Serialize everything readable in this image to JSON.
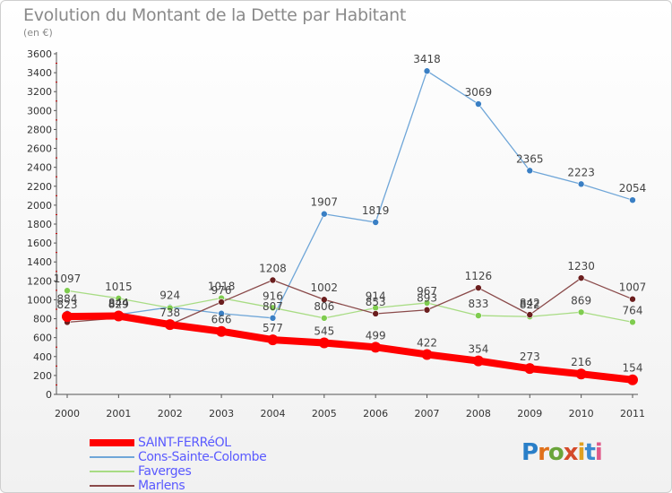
{
  "chart_data": {
    "type": "line",
    "title": "Evolution du Montant de la Dette par Habitant",
    "unit_label": "(en €)",
    "x": [
      "2000",
      "2001",
      "2002",
      "2003",
      "2004",
      "2005",
      "2006",
      "2007",
      "2008",
      "2009",
      "2010",
      "2011"
    ],
    "yticks": [
      0,
      200,
      400,
      600,
      800,
      1000,
      1200,
      1400,
      1600,
      1800,
      2000,
      2200,
      2400,
      2600,
      2800,
      3000,
      3200,
      3400,
      3600
    ],
    "ylim": [
      0,
      3600
    ],
    "grid": false,
    "legend_position": "bottom-left",
    "series": [
      {
        "name": "SAINT-FERRéOL",
        "color": "#ff0000",
        "marker": "#ff0000",
        "width": 8,
        "radius": 6,
        "values": [
          823,
          829,
          738,
          666,
          577,
          545,
          499,
          422,
          354,
          273,
          216,
          154
        ],
        "labels": [
          "823",
          "829",
          "738",
          "666",
          "577",
          "545",
          "499",
          "422",
          "354",
          "273",
          "216",
          "154"
        ]
      },
      {
        "name": "Cons-Sainte-Colombe",
        "color": "#6fa6d8",
        "marker": "#3a7fc4",
        "width": 1.3,
        "radius": 3.5,
        "values": [
          855,
          844,
          922,
          855,
          807,
          1907,
          1819,
          3418,
          3069,
          2365,
          2223,
          2054
        ],
        "labels": [
          "",
          "844",
          "",
          "",
          "807",
          "1907",
          "1819",
          "3418",
          "3069",
          "2365",
          "2223",
          "2054"
        ]
      },
      {
        "name": "Faverges",
        "color": "#a8dc84",
        "marker": "#7fcc4f",
        "width": 1.3,
        "radius": 3.5,
        "values": [
          1097,
          1015,
          914,
          1018,
          916,
          806,
          914,
          967,
          833,
          822,
          869,
          764
        ],
        "labels": [
          "1097",
          "1015",
          "",
          "1018",
          "916",
          "806",
          "914",
          "967",
          "833",
          "822",
          "869",
          "764"
        ]
      },
      {
        "name": "Marlens",
        "color": "#8a4a4a",
        "marker": "#6b1e1e",
        "width": 1.3,
        "radius": 3.5,
        "values": [
          763,
          808,
          738,
          976,
          1208,
          1002,
          853,
          893,
          1126,
          842,
          1230,
          1007
        ],
        "labels": [
          "",
          "",
          "",
          "976",
          "1208",
          "1002",
          "853",
          "893",
          "1126",
          "842",
          "1230",
          "1007"
        ]
      }
    ],
    "extra_labels": [
      "884",
      "829",
      "924"
    ]
  },
  "logo": {
    "text": "Proxiti"
  }
}
